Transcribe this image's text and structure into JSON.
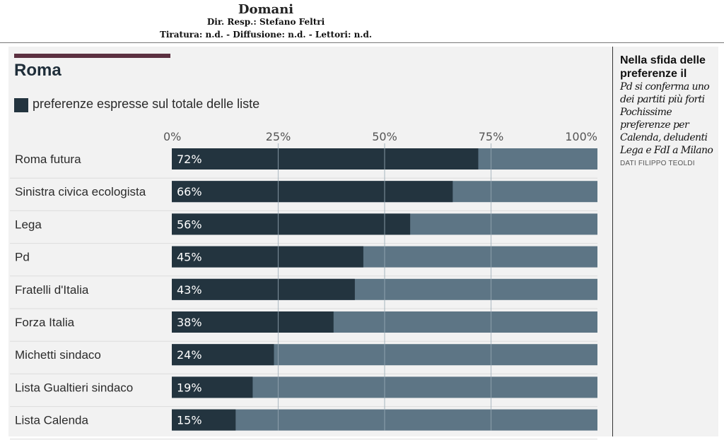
{
  "header": {
    "publication": "Domani",
    "director": "Dir. Resp.: Stefano Feltri",
    "circulation": "Tiratura: n.d. - Diffusione: n.d. - Lettori: n.d."
  },
  "sidebar": {
    "heading": "Nella sfida delle preferenze il",
    "body": "Pd si conferma uno dei partiti più forti Pochissime preferenze per Calenda, deludenti Lega e FdI a Milano",
    "credit": "DATI FILIPPO TEOLDI"
  },
  "colors": {
    "bar_fill": "#23343f",
    "bar_background": "#5d7585",
    "accent": "#5b3040"
  },
  "chart_data": {
    "type": "bar",
    "orientation": "horizontal",
    "title": "Roma",
    "legend": [
      "preferenze espresse sul totale delle liste"
    ],
    "categories": [
      "Roma futura",
      "Sinistra civica ecologista",
      "Lega",
      "Pd",
      "Fratelli d'Italia",
      "Forza Italia",
      "Michetti sindaco",
      "Lista Gualtieri sindaco",
      "Lista Calenda"
    ],
    "values": [
      72,
      66,
      56,
      45,
      43,
      38,
      24,
      19,
      15
    ],
    "data_labels": [
      "72%",
      "66%",
      "56%",
      "45%",
      "43%",
      "38%",
      "24%",
      "19%",
      "15%"
    ],
    "xlim": [
      0,
      100
    ],
    "ticks": [
      "0%",
      "25%",
      "50%",
      "75%",
      "100%"
    ],
    "tick_values": [
      0,
      25,
      50,
      75,
      100
    ],
    "grid": true
  }
}
